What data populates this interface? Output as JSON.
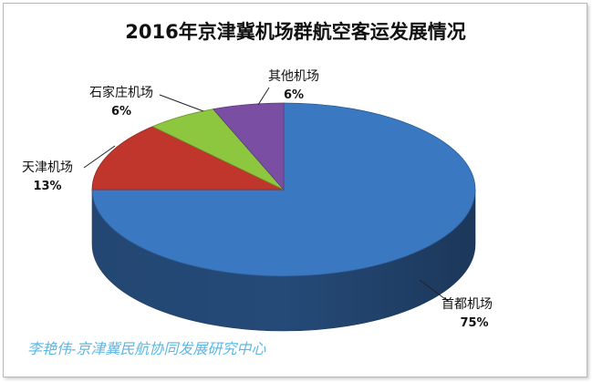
{
  "chart_data": {
    "type": "pie",
    "style": "3d",
    "title": "2016年京津冀机场群航空客运发展情况",
    "categories": [
      "首都机场",
      "天津机场",
      "石家庄机场",
      "其他机场"
    ],
    "values": [
      75,
      13,
      6,
      6
    ],
    "value_labels": [
      "75%",
      "13%",
      "6%",
      "6%"
    ],
    "colors": [
      "#3b78c2",
      "#c0362c",
      "#8dc63f",
      "#7a4fa3"
    ],
    "legend": "none"
  },
  "watermark": {
    "text": "李艳伟-京津冀民航协同发展研究中心",
    "color": "#5bb7e6"
  }
}
